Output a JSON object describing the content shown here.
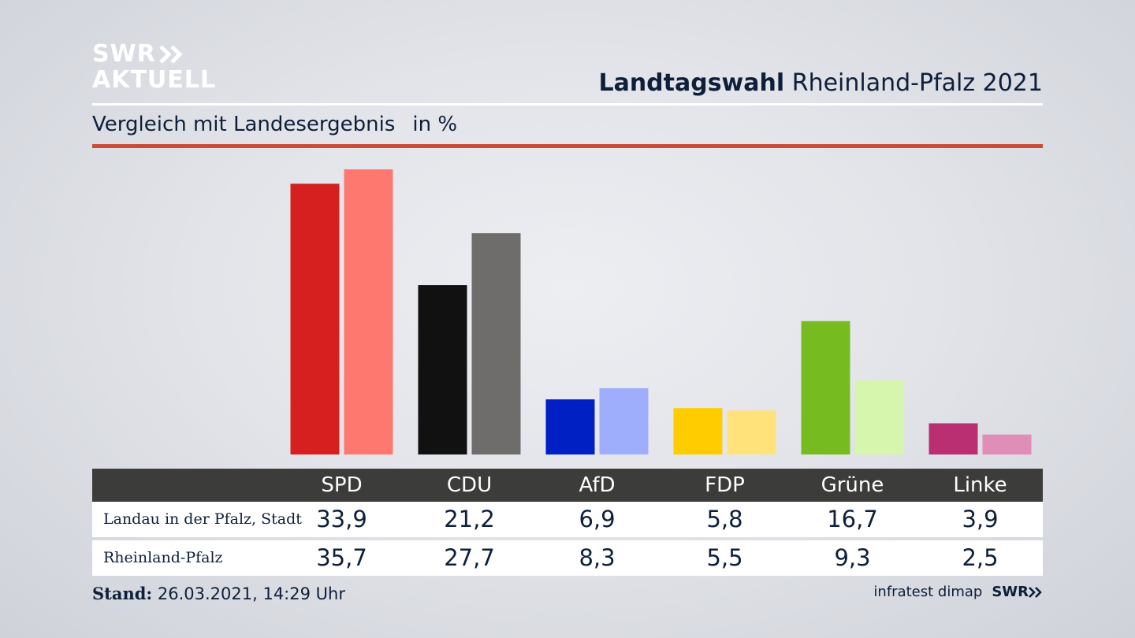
{
  "header": {
    "logo_line1": "SWR",
    "logo_line2": "AKTUELL",
    "title_bold": "Landtagswahl",
    "title_rest": "Rheinland-Pfalz 2021",
    "subtitle": "Vergleich mit Landesergebnis",
    "unit": "in %"
  },
  "colors": {
    "accent_rule": "#cc4b37",
    "table_header": "#3c3c3a"
  },
  "chart_data": {
    "type": "bar",
    "title": "Landtagswahl Rheinland-Pfalz 2021",
    "subtitle": "Vergleich mit Landesergebnis in %",
    "categories": [
      "SPD",
      "CDU",
      "AfD",
      "FDP",
      "Grüne",
      "Linke"
    ],
    "series": [
      {
        "name": "Landau in der Pfalz, Stadt",
        "values": [
          33.9,
          21.2,
          6.9,
          5.8,
          16.7,
          3.9
        ],
        "labels": [
          "33,9",
          "21,2",
          "6,9",
          "5,8",
          "16,7",
          "3,9"
        ],
        "colors": [
          "#d61f1f",
          "#111111",
          "#0120c4",
          "#ffcc00",
          "#76bc21",
          "#b92f72"
        ]
      },
      {
        "name": "Rheinland-Pfalz",
        "values": [
          35.7,
          27.7,
          8.3,
          5.5,
          9.3,
          2.5
        ],
        "labels": [
          "35,7",
          "27,7",
          "8,3",
          "5,5",
          "9,3",
          "2,5"
        ],
        "colors": [
          "#ff7870",
          "#6e6d6b",
          "#9eaefc",
          "#ffe27a",
          "#d6f5ad",
          "#e08db8"
        ]
      }
    ],
    "ylim": [
      0,
      35.7
    ],
    "grid": false
  },
  "footer": {
    "stand_label": "Stand:",
    "stand_value": "26.03.2021, 14:29 Uhr",
    "source": "infratest dimap",
    "source_logo": "SWR"
  }
}
